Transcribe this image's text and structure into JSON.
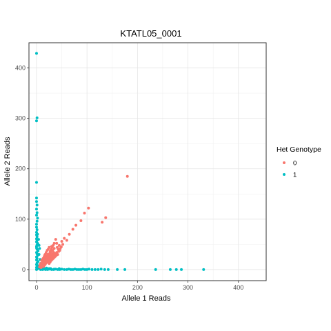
{
  "chart_data": {
    "type": "scatter",
    "title": "KTATL05_0001",
    "xlabel": "Allele 1 Reads",
    "ylabel": "Allele 2 Reads",
    "xlim": [
      -15,
      455
    ],
    "ylim": [
      -22,
      450
    ],
    "xticks": [
      0,
      100,
      200,
      300,
      400
    ],
    "yticks": [
      0,
      100,
      200,
      300,
      400
    ],
    "grid": true,
    "legend": {
      "title": "Het Genotype",
      "placement": "right",
      "entries": [
        {
          "label": "0",
          "color": "#F8766D"
        },
        {
          "label": "1",
          "color": "#00BFC4"
        }
      ]
    },
    "series": [
      {
        "name": "1",
        "color": "#00BFC4",
        "points": [
          [
            0,
            429
          ],
          [
            1,
            301
          ],
          [
            0,
            295
          ],
          [
            0,
            173
          ],
          [
            0,
            142
          ],
          [
            0,
            135
          ],
          [
            1,
            128
          ],
          [
            0,
            120
          ],
          [
            1,
            113
          ],
          [
            0,
            108
          ],
          [
            2,
            102
          ],
          [
            1,
            96
          ],
          [
            0,
            90
          ],
          [
            0,
            84
          ],
          [
            1,
            79
          ],
          [
            0,
            74
          ],
          [
            0,
            69
          ],
          [
            1,
            65
          ],
          [
            0,
            61
          ],
          [
            1,
            58
          ],
          [
            0,
            55
          ],
          [
            2,
            52
          ],
          [
            1,
            49
          ],
          [
            0,
            46
          ],
          [
            0,
            43
          ],
          [
            1,
            40
          ],
          [
            3,
            37
          ],
          [
            0,
            34
          ],
          [
            1,
            31
          ],
          [
            2,
            28
          ],
          [
            0,
            25
          ],
          [
            1,
            22
          ],
          [
            0,
            19
          ],
          [
            3,
            16
          ],
          [
            1,
            13
          ],
          [
            0,
            10
          ],
          [
            2,
            8
          ],
          [
            1,
            6
          ],
          [
            0,
            4
          ],
          [
            4,
            3
          ],
          [
            2,
            2
          ],
          [
            1,
            1
          ],
          [
            0,
            0
          ],
          [
            6,
            42
          ],
          [
            5,
            30
          ],
          [
            7,
            20
          ],
          [
            8,
            12
          ],
          [
            10,
            7
          ],
          [
            6,
            5
          ],
          [
            9,
            3
          ],
          [
            3,
            50
          ],
          [
            4,
            60
          ],
          [
            2,
            70
          ],
          [
            5,
            48
          ],
          [
            8,
            0
          ],
          [
            12,
            0
          ],
          [
            15,
            1
          ],
          [
            18,
            0
          ],
          [
            22,
            0
          ],
          [
            26,
            1
          ],
          [
            30,
            0
          ],
          [
            34,
            0
          ],
          [
            38,
            1
          ],
          [
            42,
            0
          ],
          [
            46,
            0
          ],
          [
            50,
            1
          ],
          [
            55,
            0
          ],
          [
            60,
            0
          ],
          [
            64,
            1
          ],
          [
            68,
            0
          ],
          [
            72,
            0
          ],
          [
            76,
            1
          ],
          [
            80,
            0
          ],
          [
            84,
            0
          ],
          [
            88,
            0
          ],
          [
            92,
            1
          ],
          [
            96,
            0
          ],
          [
            100,
            0
          ],
          [
            104,
            1
          ],
          [
            110,
            0
          ],
          [
            116,
            0
          ],
          [
            122,
            0
          ],
          [
            128,
            1
          ],
          [
            135,
            0
          ],
          [
            142,
            0
          ],
          [
            160,
            0
          ],
          [
            175,
            0
          ],
          [
            236,
            0
          ],
          [
            265,
            0
          ],
          [
            277,
            0
          ],
          [
            287,
            0
          ],
          [
            331,
            0
          ],
          [
            25,
            2
          ],
          [
            35,
            1
          ],
          [
            45,
            2
          ],
          [
            20,
            3
          ],
          [
            14,
            4
          ],
          [
            11,
            2
          ],
          [
            16,
            2
          ],
          [
            28,
            2
          ]
        ]
      },
      {
        "name": "0",
        "color": "#F8766D",
        "points": [
          [
            180,
            185
          ],
          [
            103,
            122
          ],
          [
            130,
            94
          ],
          [
            137,
            103
          ],
          [
            95,
            112
          ],
          [
            78,
            88
          ],
          [
            88,
            97
          ],
          [
            72,
            80
          ],
          [
            65,
            70
          ],
          [
            60,
            58
          ],
          [
            55,
            62
          ],
          [
            50,
            56
          ],
          [
            45,
            48
          ],
          [
            40,
            52
          ],
          [
            38,
            60
          ],
          [
            35,
            42
          ],
          [
            32,
            38
          ],
          [
            30,
            46
          ],
          [
            28,
            35
          ],
          [
            26,
            32
          ],
          [
            24,
            28
          ],
          [
            22,
            30
          ],
          [
            20,
            26
          ],
          [
            18,
            24
          ],
          [
            17,
            20
          ],
          [
            16,
            28
          ],
          [
            15,
            18
          ],
          [
            14,
            16
          ],
          [
            13,
            22
          ],
          [
            12,
            14
          ],
          [
            11,
            12
          ],
          [
            10,
            18
          ],
          [
            10,
            10
          ],
          [
            9,
            8
          ],
          [
            8,
            12
          ],
          [
            8,
            6
          ],
          [
            7,
            9
          ],
          [
            6,
            5
          ],
          [
            12,
            8
          ],
          [
            14,
            6
          ],
          [
            16,
            10
          ],
          [
            18,
            12
          ],
          [
            20,
            14
          ],
          [
            22,
            16
          ],
          [
            24,
            18
          ],
          [
            26,
            20
          ],
          [
            28,
            22
          ],
          [
            30,
            24
          ],
          [
            32,
            26
          ],
          [
            34,
            28
          ],
          [
            36,
            30
          ],
          [
            38,
            32
          ],
          [
            40,
            34
          ],
          [
            42,
            30
          ],
          [
            44,
            36
          ],
          [
            46,
            38
          ],
          [
            25,
            12
          ],
          [
            27,
            15
          ],
          [
            29,
            18
          ],
          [
            31,
            20
          ],
          [
            33,
            22
          ],
          [
            35,
            24
          ],
          [
            37,
            26
          ],
          [
            39,
            28
          ],
          [
            15,
            25
          ],
          [
            17,
            30
          ],
          [
            19,
            34
          ],
          [
            21,
            38
          ],
          [
            23,
            40
          ],
          [
            25,
            44
          ],
          [
            27,
            36
          ],
          [
            29,
            40
          ],
          [
            31,
            44
          ],
          [
            33,
            48
          ],
          [
            35,
            52
          ],
          [
            41,
            44
          ],
          [
            43,
            40
          ],
          [
            47,
            42
          ],
          [
            49,
            45
          ],
          [
            52,
            50
          ],
          [
            15,
            8
          ],
          [
            17,
            10
          ],
          [
            19,
            16
          ],
          [
            21,
            20
          ],
          [
            23,
            24
          ],
          [
            13,
            10
          ],
          [
            11,
            6
          ],
          [
            9,
            4
          ],
          [
            12,
            20
          ],
          [
            14,
            12
          ],
          [
            16,
            14
          ],
          [
            18,
            18
          ],
          [
            20,
            22
          ],
          [
            22,
            25
          ],
          [
            24,
            22
          ],
          [
            26,
            26
          ],
          [
            28,
            28
          ],
          [
            30,
            30
          ],
          [
            32,
            32
          ],
          [
            34,
            34
          ]
        ]
      }
    ]
  }
}
